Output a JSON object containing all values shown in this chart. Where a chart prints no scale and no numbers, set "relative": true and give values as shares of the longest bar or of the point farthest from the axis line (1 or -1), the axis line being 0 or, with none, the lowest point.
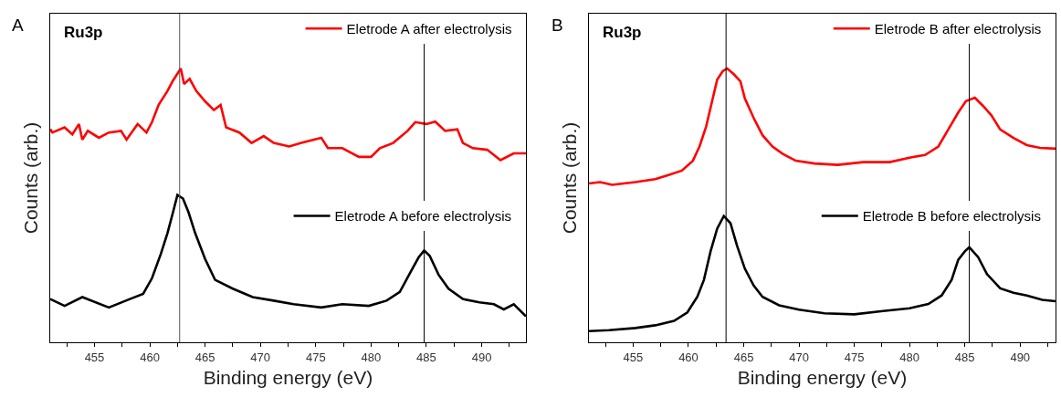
{
  "chart_data": [
    {
      "type": "line",
      "relative": true,
      "xlabel": "Binding energy (eV)",
      "ylabel": "Counts (arb.)",
      "annotations": [
        "A",
        "Ru3p"
      ],
      "xlim": [
        451,
        494
      ],
      "xticks": [
        {
          "value": 452.5,
          "label": null
        },
        455,
        {
          "value": 457.5,
          "label": null
        },
        460,
        {
          "value": 462.5,
          "label": null
        },
        465,
        {
          "value": 467.5,
          "label": null
        },
        470,
        {
          "value": 472.5,
          "label": null
        },
        475,
        {
          "value": 477.5,
          "label": null
        },
        480,
        {
          "value": 482.5,
          "label": null
        },
        485,
        {
          "value": 487.5,
          "label": null
        },
        490,
        {
          "value": 492.5,
          "label": null
        }
      ],
      "grid": false,
      "legend": "top right",
      "marker": "none",
      "line_style": "solid",
      "tick_labels": "x",
      "ref_lines": [
        {
          "axis": "x",
          "value": 462.7,
          "color": "#555555"
        },
        {
          "axis": "x",
          "value": 484.8,
          "color": "#000000"
        }
      ],
      "series": [
        {
          "name": "Eletrode A after electrolysis",
          "color": "#ff0000",
          "x": [
            451,
            451.2,
            452.3,
            453.0,
            453.6,
            453.9,
            454.4,
            455.4,
            456.3,
            457.4,
            457.9,
            458.9,
            459.7,
            460.2,
            460.8,
            461.6,
            462.1,
            462.5,
            462.8,
            463.1,
            463.6,
            464.2,
            465.0,
            465.8,
            466.4,
            466.9,
            468.1,
            469.2,
            470.3,
            471.2,
            472.6,
            473.7,
            475.5,
            476.1,
            477.4,
            478.9,
            480.0,
            480.8,
            482.0,
            483.3,
            484.0,
            485.0,
            485.8,
            486.7,
            487.8,
            488.3,
            489.2,
            490.5,
            491.7,
            492.9,
            494
          ],
          "values": [
            0.778,
            0.766,
            0.785,
            0.759,
            0.797,
            0.74,
            0.772,
            0.747,
            0.766,
            0.772,
            0.74,
            0.797,
            0.766,
            0.804,
            0.867,
            0.918,
            0.956,
            0.981,
            1.0,
            0.943,
            0.962,
            0.918,
            0.88,
            0.848,
            0.867,
            0.785,
            0.766,
            0.728,
            0.753,
            0.728,
            0.715,
            0.728,
            0.747,
            0.709,
            0.709,
            0.677,
            0.677,
            0.709,
            0.728,
            0.772,
            0.804,
            0.797,
            0.806,
            0.772,
            0.778,
            0.728,
            0.709,
            0.703,
            0.665,
            0.69,
            0.69
          ]
        },
        {
          "name": "Eletrode A before electrolysis",
          "color": "#000000",
          "x": [
            451,
            452.3,
            453.9,
            456.3,
            458.2,
            459.4,
            460.2,
            461.0,
            461.6,
            462.1,
            462.5,
            463.0,
            463.5,
            464.1,
            465.0,
            465.9,
            467.5,
            469.3,
            471.2,
            473.0,
            475.5,
            477.4,
            479.8,
            481.4,
            482.6,
            483.6,
            484.3,
            484.8,
            485.3,
            486.1,
            487.0,
            488.3,
            489.8,
            491.1,
            492.0,
            492.9,
            494
          ],
          "values": [
            0.158,
            0.133,
            0.165,
            0.127,
            0.158,
            0.177,
            0.234,
            0.323,
            0.399,
            0.475,
            0.538,
            0.525,
            0.475,
            0.399,
            0.304,
            0.228,
            0.196,
            0.165,
            0.152,
            0.139,
            0.127,
            0.139,
            0.133,
            0.152,
            0.184,
            0.259,
            0.31,
            0.335,
            0.316,
            0.247,
            0.196,
            0.158,
            0.146,
            0.139,
            0.12,
            0.139,
            0.095
          ]
        }
      ]
    },
    {
      "type": "line",
      "relative": true,
      "xlabel": "Binding energy (eV)",
      "ylabel": "Counts (arb.)",
      "annotations": [
        "B",
        "Ru3p"
      ],
      "xlim": [
        451,
        493.2
      ],
      "xticks": [
        {
          "value": 452.5,
          "label": null
        },
        455,
        {
          "value": 457.5,
          "label": null
        },
        460,
        {
          "value": 462.5,
          "label": null
        },
        465,
        {
          "value": 467.5,
          "label": null
        },
        470,
        {
          "value": 472.5,
          "label": null
        },
        475,
        {
          "value": 477.5,
          "label": null
        },
        480,
        {
          "value": 482.5,
          "label": null
        },
        485,
        {
          "value": 487.5,
          "label": null
        },
        490,
        {
          "value": 492.5,
          "label": null
        }
      ],
      "grid": false,
      "legend": "top right",
      "marker": "none",
      "line_style": "solid",
      "tick_labels": "x",
      "ref_lines": [
        {
          "axis": "x",
          "value": 463.4,
          "color": "#000000"
        },
        {
          "axis": "x",
          "value": 485.4,
          "color": "#000000"
        }
      ],
      "series": [
        {
          "name": "Eletrode B after electrolysis",
          "color": "#ff0000",
          "x": [
            451,
            452,
            453.1,
            455.2,
            457.0,
            458.2,
            459.4,
            460.4,
            461.0,
            461.6,
            462.2,
            462.6,
            463.1,
            463.5,
            464.1,
            464.7,
            465.1,
            465.9,
            466.7,
            467.6,
            468.5,
            469.7,
            471.4,
            473.5,
            475.8,
            478.2,
            480.2,
            481.4,
            482.6,
            483.5,
            484.4,
            485.1,
            485.9,
            486.6,
            487.4,
            488.2,
            489.4,
            490.6,
            491.8,
            493.2
          ],
          "values": [
            0.58,
            0.585,
            0.575,
            0.585,
            0.596,
            0.611,
            0.627,
            0.663,
            0.715,
            0.788,
            0.891,
            0.959,
            0.99,
            1.0,
            0.979,
            0.953,
            0.891,
            0.819,
            0.756,
            0.715,
            0.689,
            0.663,
            0.653,
            0.648,
            0.658,
            0.658,
            0.676,
            0.684,
            0.715,
            0.777,
            0.839,
            0.881,
            0.893,
            0.865,
            0.829,
            0.777,
            0.746,
            0.72,
            0.71,
            0.707
          ]
        },
        {
          "name": "Eletrode B before electrolysis",
          "color": "#000000",
          "x": [
            451,
            452.8,
            455.2,
            457.0,
            458.7,
            459.9,
            460.8,
            461.4,
            462.0,
            462.6,
            463.2,
            463.8,
            464.4,
            465.1,
            465.9,
            466.7,
            468.2,
            470.0,
            472.3,
            475.0,
            477.6,
            480.0,
            481.7,
            482.9,
            483.8,
            484.4,
            485.0,
            485.4,
            486.2,
            487.0,
            488.2,
            489.4,
            490.6,
            492.0,
            493.2
          ],
          "values": [
            0.041,
            0.044,
            0.052,
            0.062,
            0.078,
            0.109,
            0.166,
            0.228,
            0.332,
            0.415,
            0.461,
            0.435,
            0.352,
            0.269,
            0.207,
            0.166,
            0.135,
            0.119,
            0.106,
            0.102,
            0.114,
            0.124,
            0.14,
            0.171,
            0.228,
            0.301,
            0.332,
            0.347,
            0.311,
            0.249,
            0.197,
            0.181,
            0.171,
            0.155,
            0.15
          ]
        }
      ]
    }
  ]
}
